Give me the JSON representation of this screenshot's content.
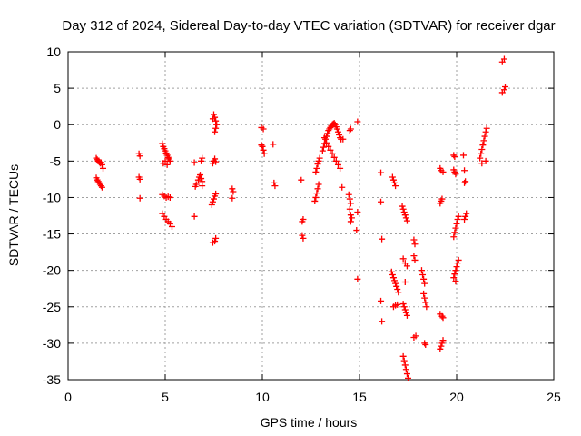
{
  "chart_data": {
    "type": "scatter",
    "title": "Day 312 of 2024, Sidereal Day-to-day VTEC variation (SDTVAR) for receiver dgar",
    "xlabel": "GPS time / hours",
    "ylabel": "SDTVAR / TECUs",
    "xlim": [
      0,
      25
    ],
    "ylim": [
      -35,
      10
    ],
    "x_ticks": [
      "0",
      "5",
      "10",
      "15",
      "20",
      "25"
    ],
    "y_ticks": [
      "10",
      "5",
      "0",
      "-5",
      "-10",
      "-15",
      "-20",
      "-25",
      "-30",
      "-35"
    ],
    "grid": true,
    "marker": "plus",
    "color": "#ff0000",
    "series": [
      {
        "name": "SDTVAR",
        "points": [
          [
            1.45,
            -4.6
          ],
          [
            1.5,
            -4.8
          ],
          [
            1.55,
            -5.0
          ],
          [
            1.6,
            -5.1
          ],
          [
            1.65,
            -5.3
          ],
          [
            1.7,
            -5.2
          ],
          [
            1.75,
            -5.5
          ],
          [
            1.8,
            -6.0
          ],
          [
            1.45,
            -7.3
          ],
          [
            1.5,
            -7.6
          ],
          [
            1.55,
            -7.8
          ],
          [
            1.6,
            -8.0
          ],
          [
            1.65,
            -8.2
          ],
          [
            1.7,
            -8.4
          ],
          [
            1.75,
            -8.6
          ],
          [
            3.65,
            -4.0
          ],
          [
            3.7,
            -4.3
          ],
          [
            3.65,
            -7.2
          ],
          [
            3.7,
            -7.5
          ],
          [
            3.7,
            -10.1
          ],
          [
            4.85,
            -2.6
          ],
          [
            4.9,
            -3.0
          ],
          [
            4.95,
            -3.3
          ],
          [
            5.0,
            -3.6
          ],
          [
            5.05,
            -3.9
          ],
          [
            5.1,
            -4.2
          ],
          [
            5.15,
            -4.5
          ],
          [
            5.2,
            -4.7
          ],
          [
            5.25,
            -5.0
          ],
          [
            4.9,
            -5.3
          ],
          [
            5.0,
            -5.0
          ],
          [
            5.1,
            -5.5
          ],
          [
            4.85,
            -9.6
          ],
          [
            4.95,
            -9.8
          ],
          [
            5.05,
            -10.0
          ],
          [
            5.15,
            -9.9
          ],
          [
            5.25,
            -10.0
          ],
          [
            4.85,
            -12.2
          ],
          [
            4.95,
            -12.6
          ],
          [
            5.05,
            -13.0
          ],
          [
            5.15,
            -13.3
          ],
          [
            5.25,
            -13.6
          ],
          [
            5.35,
            -14.0
          ],
          [
            6.5,
            -12.6
          ],
          [
            6.5,
            -5.2
          ],
          [
            6.55,
            -8.5
          ],
          [
            6.6,
            -8.2
          ],
          [
            6.7,
            -7.6
          ],
          [
            6.75,
            -7.2
          ],
          [
            6.8,
            -6.9
          ],
          [
            6.85,
            -7.4
          ],
          [
            6.9,
            -7.8
          ],
          [
            6.9,
            -8.4
          ],
          [
            6.85,
            -5.0
          ],
          [
            6.9,
            -4.6
          ],
          [
            7.45,
            0.8
          ],
          [
            7.5,
            1.4
          ],
          [
            7.55,
            1.0
          ],
          [
            7.6,
            0.5
          ],
          [
            7.65,
            0.0
          ],
          [
            7.6,
            -0.5
          ],
          [
            7.55,
            -1.0
          ],
          [
            7.45,
            -5.3
          ],
          [
            7.5,
            -5.0
          ],
          [
            7.55,
            -4.7
          ],
          [
            7.6,
            -5.1
          ],
          [
            7.4,
            -11.0
          ],
          [
            7.45,
            -10.6
          ],
          [
            7.5,
            -10.2
          ],
          [
            7.55,
            -9.8
          ],
          [
            7.6,
            -9.5
          ],
          [
            7.45,
            -16.2
          ],
          [
            7.55,
            -16.0
          ],
          [
            7.6,
            -15.6
          ],
          [
            8.45,
            -8.8
          ],
          [
            8.5,
            -9.2
          ],
          [
            8.45,
            -10.1
          ],
          [
            9.95,
            -0.4
          ],
          [
            10.05,
            -0.6
          ],
          [
            9.95,
            -2.8
          ],
          [
            10.0,
            -3.0
          ],
          [
            10.05,
            -3.5
          ],
          [
            10.1,
            -4.0
          ],
          [
            10.55,
            -2.7
          ],
          [
            10.6,
            -8.0
          ],
          [
            10.65,
            -8.4
          ],
          [
            12.0,
            -7.6
          ],
          [
            12.05,
            -13.3
          ],
          [
            12.1,
            -13.0
          ],
          [
            12.05,
            -15.2
          ],
          [
            12.1,
            -15.6
          ],
          [
            12.7,
            -10.5
          ],
          [
            12.75,
            -10.0
          ],
          [
            12.8,
            -9.4
          ],
          [
            12.85,
            -8.8
          ],
          [
            12.9,
            -8.2
          ],
          [
            12.75,
            -6.5
          ],
          [
            12.8,
            -6.0
          ],
          [
            12.85,
            -5.4
          ],
          [
            12.9,
            -5.0
          ],
          [
            12.95,
            -4.6
          ],
          [
            13.1,
            -3.6
          ],
          [
            13.15,
            -3.1
          ],
          [
            13.2,
            -2.6
          ],
          [
            13.25,
            -2.0
          ],
          [
            13.3,
            -1.6
          ],
          [
            13.35,
            -1.2
          ],
          [
            13.4,
            -0.8
          ],
          [
            13.45,
            -0.6
          ],
          [
            13.5,
            -0.4
          ],
          [
            13.55,
            -0.2
          ],
          [
            13.6,
            0.0
          ],
          [
            13.65,
            0.1
          ],
          [
            13.7,
            0.2
          ],
          [
            13.75,
            0.0
          ],
          [
            13.8,
            -0.3
          ],
          [
            13.85,
            -0.6
          ],
          [
            13.9,
            -1.0
          ],
          [
            13.95,
            -1.4
          ],
          [
            14.0,
            -1.8
          ],
          [
            14.05,
            -2.0
          ],
          [
            13.2,
            -1.8
          ],
          [
            13.3,
            -2.5
          ],
          [
            13.4,
            -3.0
          ],
          [
            13.5,
            -3.5
          ],
          [
            13.6,
            -4.0
          ],
          [
            13.7,
            -4.5
          ],
          [
            13.8,
            -5.0
          ],
          [
            13.9,
            -5.5
          ],
          [
            14.0,
            -6.0
          ],
          [
            14.1,
            -8.6
          ],
          [
            14.15,
            -2.0
          ],
          [
            14.5,
            -0.8
          ],
          [
            14.55,
            -0.6
          ],
          [
            14.45,
            -9.6
          ],
          [
            14.5,
            -10.2
          ],
          [
            14.55,
            -10.8
          ],
          [
            14.5,
            -11.6
          ],
          [
            14.55,
            -12.4
          ],
          [
            14.6,
            -12.8
          ],
          [
            14.55,
            -13.3
          ],
          [
            14.9,
            0.4
          ],
          [
            14.9,
            -12.0
          ],
          [
            14.85,
            -14.5
          ],
          [
            14.9,
            -21.2
          ],
          [
            16.1,
            -6.6
          ],
          [
            16.1,
            -10.6
          ],
          [
            16.15,
            -15.7
          ],
          [
            16.1,
            -24.2
          ],
          [
            16.15,
            -27.0
          ],
          [
            16.65,
            -20.2
          ],
          [
            16.7,
            -20.6
          ],
          [
            16.75,
            -21.0
          ],
          [
            16.8,
            -21.4
          ],
          [
            16.85,
            -21.8
          ],
          [
            16.9,
            -22.2
          ],
          [
            16.95,
            -22.6
          ],
          [
            17.0,
            -23.0
          ],
          [
            16.7,
            -7.2
          ],
          [
            16.75,
            -7.6
          ],
          [
            16.8,
            -8.0
          ],
          [
            16.85,
            -8.4
          ],
          [
            16.75,
            -25.0
          ],
          [
            16.85,
            -24.8
          ],
          [
            16.95,
            -24.7
          ],
          [
            17.2,
            -11.2
          ],
          [
            17.25,
            -11.6
          ],
          [
            17.3,
            -12.0
          ],
          [
            17.35,
            -12.4
          ],
          [
            17.4,
            -12.8
          ],
          [
            17.45,
            -13.2
          ],
          [
            17.25,
            -24.6
          ],
          [
            17.3,
            -25.0
          ],
          [
            17.35,
            -25.4
          ],
          [
            17.4,
            -25.8
          ],
          [
            17.45,
            -26.2
          ],
          [
            17.25,
            -31.8
          ],
          [
            17.3,
            -32.4
          ],
          [
            17.35,
            -33.0
          ],
          [
            17.4,
            -33.6
          ],
          [
            17.45,
            -34.2
          ],
          [
            17.5,
            -34.8
          ],
          [
            17.25,
            -18.4
          ],
          [
            17.35,
            -19.0
          ],
          [
            17.45,
            -19.4
          ],
          [
            17.35,
            -21.6
          ],
          [
            17.8,
            -15.8
          ],
          [
            17.85,
            -16.4
          ],
          [
            17.8,
            -18.0
          ],
          [
            17.85,
            -18.6
          ],
          [
            17.8,
            -29.2
          ],
          [
            17.9,
            -29.0
          ],
          [
            18.2,
            -20.0
          ],
          [
            18.25,
            -20.6
          ],
          [
            18.3,
            -21.2
          ],
          [
            18.35,
            -21.8
          ],
          [
            18.3,
            -23.2
          ],
          [
            18.35,
            -23.8
          ],
          [
            18.4,
            -24.4
          ],
          [
            18.45,
            -25.0
          ],
          [
            18.35,
            -30.0
          ],
          [
            18.4,
            -30.2
          ],
          [
            19.15,
            -6.0
          ],
          [
            19.2,
            -6.3
          ],
          [
            19.3,
            -6.5
          ],
          [
            19.15,
            -10.8
          ],
          [
            19.2,
            -10.5
          ],
          [
            19.25,
            -10.2
          ],
          [
            19.15,
            -26.0
          ],
          [
            19.25,
            -26.3
          ],
          [
            19.3,
            -26.5
          ],
          [
            19.15,
            -30.8
          ],
          [
            19.2,
            -30.4
          ],
          [
            19.25,
            -30.0
          ],
          [
            19.3,
            -29.6
          ],
          [
            19.85,
            -4.2
          ],
          [
            19.9,
            -4.4
          ],
          [
            19.85,
            -6.2
          ],
          [
            19.9,
            -6.5
          ],
          [
            19.95,
            -6.8
          ],
          [
            19.85,
            -15.4
          ],
          [
            19.9,
            -14.8
          ],
          [
            19.95,
            -14.2
          ],
          [
            20.0,
            -13.6
          ],
          [
            20.05,
            -13.0
          ],
          [
            20.1,
            -12.6
          ],
          [
            19.85,
            -21.0
          ],
          [
            19.9,
            -20.5
          ],
          [
            19.95,
            -20.0
          ],
          [
            20.0,
            -19.5
          ],
          [
            20.05,
            -19.0
          ],
          [
            20.1,
            -18.6
          ],
          [
            19.95,
            -21.5
          ],
          [
            20.35,
            -4.2
          ],
          [
            20.4,
            -6.3
          ],
          [
            20.4,
            -13.0
          ],
          [
            20.45,
            -12.6
          ],
          [
            20.5,
            -12.2
          ],
          [
            20.4,
            -8.0
          ],
          [
            20.45,
            -7.8
          ],
          [
            21.2,
            -4.6
          ],
          [
            21.25,
            -4.0
          ],
          [
            21.3,
            -3.4
          ],
          [
            21.35,
            -2.8
          ],
          [
            21.4,
            -2.2
          ],
          [
            21.45,
            -1.6
          ],
          [
            21.5,
            -1.0
          ],
          [
            21.55,
            -0.5
          ],
          [
            21.5,
            -5.0
          ],
          [
            21.3,
            -5.3
          ],
          [
            22.35,
            8.6
          ],
          [
            22.45,
            9.0
          ],
          [
            22.35,
            4.4
          ],
          [
            22.45,
            4.8
          ],
          [
            22.5,
            5.2
          ]
        ]
      }
    ]
  }
}
